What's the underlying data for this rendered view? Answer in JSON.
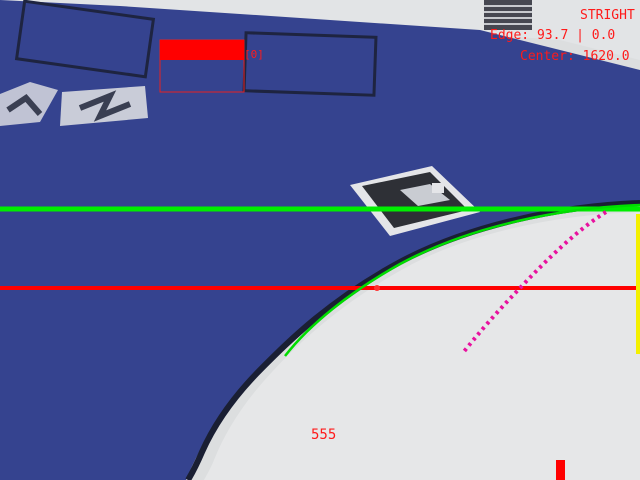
{
  "overlay": {
    "mode_label": "STRIGHT",
    "edge_readout": "Edge: 93.7 | 0.0",
    "center_readout": "Center: 1620.0",
    "marker_id_label": "[0]",
    "bottom_counter": "555"
  },
  "colors": {
    "track_surface": "#35438f",
    "floor": "#dcdedf",
    "horizon_line": "#00ee00",
    "reference_line": "#ff0000",
    "trajectory_dots": "#e8129f",
    "edge_trace": "#00dd00",
    "hud_text": "#ff1a1a",
    "side_bar": "#f4f000"
  },
  "icons": {
    "arrow_sign": "aruco-marker-icon",
    "floor_markings": "road-arrow-marking-icon"
  }
}
